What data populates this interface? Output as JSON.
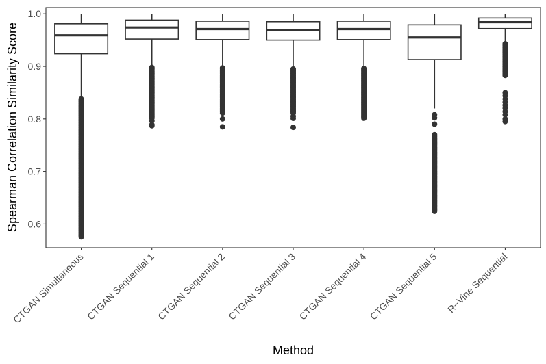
{
  "chart_data": {
    "type": "boxplot",
    "title": "",
    "xlabel": "Method",
    "ylabel": "Spearman Correlation Similarity Score",
    "ylim": [
      0.555,
      1.012
    ],
    "yticks": [
      0.6,
      0.7,
      0.8,
      0.9,
      1.0
    ],
    "ytick_labels": [
      "0.6",
      "0.7",
      "0.8",
      "0.9",
      "1.0"
    ],
    "grid": false,
    "legend": "none",
    "colors": {
      "stroke": "#333333",
      "fill": "#ffffff",
      "outlier": "#333333",
      "axis_text": "#4d4d4d",
      "label": "#000000"
    },
    "categories": [
      "CTGAN Simultaneous",
      "CTGAN Sequential 1",
      "CTGAN Sequential 2",
      "CTGAN Sequential 3",
      "CTGAN Sequential 4",
      "CTGAN Sequential 5",
      "R−Vine Sequential"
    ],
    "boxes": [
      {
        "q1": 0.924,
        "median": 0.959,
        "q3": 0.981,
        "whisker_low": 0.838,
        "whisker_high": 0.999,
        "outlier_range": [
          0.575,
          0.838
        ],
        "outlier_extra": []
      },
      {
        "q1": 0.952,
        "median": 0.974,
        "q3": 0.988,
        "whisker_low": 0.898,
        "whisker_high": 0.999,
        "outlier_range": [
          0.8,
          0.898
        ],
        "outlier_extra": [
          0.796,
          0.789,
          0.787
        ]
      },
      {
        "q1": 0.951,
        "median": 0.971,
        "q3": 0.986,
        "whisker_low": 0.897,
        "whisker_high": 0.999,
        "outlier_range": [
          0.81,
          0.897
        ],
        "outlier_extra": [
          0.8,
          0.785
        ]
      },
      {
        "q1": 0.95,
        "median": 0.969,
        "q3": 0.985,
        "whisker_low": 0.895,
        "whisker_high": 0.999,
        "outlier_range": [
          0.81,
          0.895
        ],
        "outlier_extra": [
          0.805,
          0.801,
          0.784
        ]
      },
      {
        "q1": 0.951,
        "median": 0.971,
        "q3": 0.986,
        "whisker_low": 0.896,
        "whisker_high": 0.999,
        "outlier_range": [
          0.8,
          0.896
        ],
        "outlier_extra": []
      },
      {
        "q1": 0.913,
        "median": 0.955,
        "q3": 0.979,
        "whisker_low": 0.82,
        "whisker_high": 0.999,
        "outlier_range": [
          0.623,
          0.77
        ],
        "outlier_extra": [
          0.808,
          0.802,
          0.79
        ]
      },
      {
        "q1": 0.972,
        "median": 0.984,
        "q3": 0.992,
        "whisker_low": 0.944,
        "whisker_high": 0.999,
        "outlier_range": [
          0.882,
          0.943
        ],
        "outlier_extra": [
          0.85,
          0.844,
          0.838,
          0.832,
          0.826,
          0.82,
          0.814,
          0.808,
          0.8,
          0.795
        ]
      }
    ]
  }
}
